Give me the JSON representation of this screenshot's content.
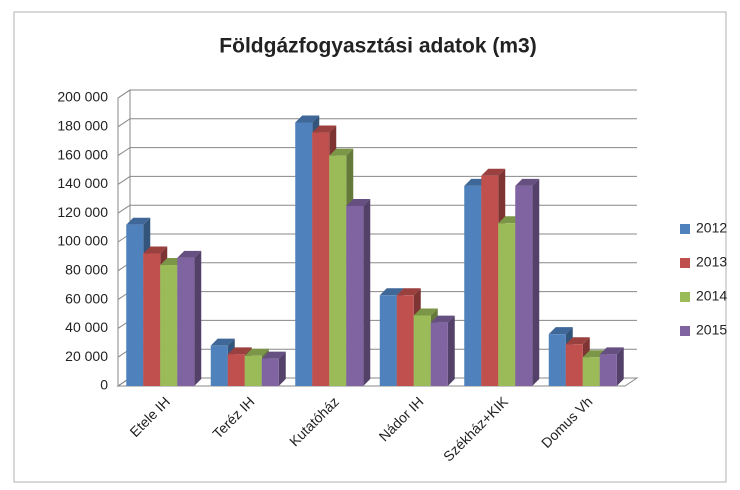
{
  "chart_data": {
    "type": "bar3d",
    "title": "Földgázfogyasztási adatok (m3)",
    "categories": [
      "Etele IH",
      "Teréz IH",
      "Kutatóház",
      "Nádor IH",
      "Székház+KIK",
      "Domus Vh"
    ],
    "series": [
      {
        "name": "2012",
        "color": "#4f81bd",
        "values": [
          112000,
          28000,
          183000,
          63000,
          139000,
          36000
        ]
      },
      {
        "name": "2013",
        "color": "#c0504d",
        "values": [
          92000,
          22000,
          176000,
          63000,
          146000,
          29000
        ]
      },
      {
        "name": "2014",
        "color": "#9bbb59",
        "values": [
          84000,
          21000,
          160000,
          49000,
          113000,
          20000
        ]
      },
      {
        "name": "2015",
        "color": "#8064a2",
        "values": [
          89000,
          19000,
          125000,
          44000,
          139000,
          22000
        ]
      }
    ],
    "ylim": [
      0,
      200000
    ],
    "yticks": [
      0,
      {
        "value": 20000,
        "label": "20 000"
      },
      {
        "value": 40000,
        "label": "40 000"
      },
      {
        "value": 60000,
        "label": "60 000"
      },
      {
        "value": 80000,
        "label": "80 000"
      },
      {
        "value": 100000,
        "label": "100 000"
      },
      {
        "value": 120000,
        "label": "120 000"
      },
      {
        "value": 140000,
        "label": "140 000"
      },
      {
        "value": 160000,
        "label": "160 000"
      },
      {
        "value": 180000,
        "label": "180 000"
      },
      {
        "value": 200000,
        "label": "200 000"
      }
    ],
    "grid": true,
    "legend": "right"
  }
}
